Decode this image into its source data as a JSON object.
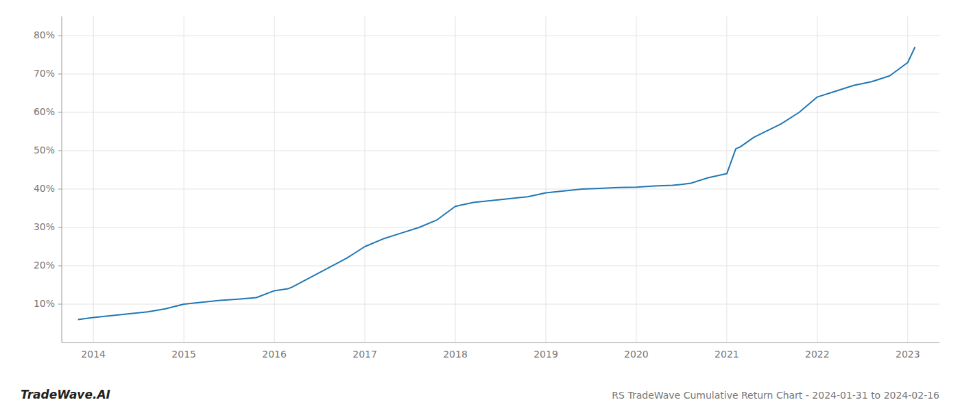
{
  "chart_data": {
    "type": "line",
    "title": "RS TradeWave Cumulative Return Chart - 2024-01-31 to 2024-02-16",
    "annotations": [
      "TradeWave.AI"
    ],
    "color": "#1f77b4",
    "grid": true,
    "x": [
      2013.83,
      2014.0,
      2014.2,
      2014.4,
      2014.6,
      2014.8,
      2015.0,
      2015.2,
      2015.4,
      2015.6,
      2015.8,
      2016.0,
      2016.15,
      2016.2,
      2016.4,
      2016.6,
      2016.8,
      2017.0,
      2017.2,
      2017.4,
      2017.6,
      2017.8,
      2018.0,
      2018.2,
      2018.4,
      2018.6,
      2018.8,
      2019.0,
      2019.2,
      2019.4,
      2019.6,
      2019.8,
      2020.0,
      2020.2,
      2020.4,
      2020.5,
      2020.6,
      2020.8,
      2021.0,
      2021.1,
      2021.15,
      2021.3,
      2021.6,
      2021.8,
      2022.0,
      2022.2,
      2022.4,
      2022.6,
      2022.8,
      2023.0,
      2023.08
    ],
    "values": [
      6.0,
      6.5,
      7.0,
      7.5,
      8.0,
      8.8,
      10.0,
      10.5,
      11.0,
      11.3,
      11.7,
      13.5,
      14.0,
      14.5,
      17.0,
      19.5,
      22.0,
      25.0,
      27.0,
      28.5,
      30.0,
      32.0,
      35.5,
      36.5,
      37.0,
      37.5,
      38.0,
      39.0,
      39.5,
      40.0,
      40.2,
      40.4,
      40.5,
      40.8,
      41.0,
      41.2,
      41.5,
      43.0,
      44.0,
      50.5,
      51.0,
      53.5,
      57.0,
      60.0,
      64.0,
      65.5,
      67.0,
      68.0,
      69.5,
      73.0,
      77.0
    ],
    "xlim": [
      2013.65,
      2023.35
    ],
    "ylim": [
      0,
      85
    ],
    "xticks": [
      2014,
      2015,
      2016,
      2017,
      2018,
      2019,
      2020,
      2021,
      2022,
      2023
    ],
    "yticks": [
      {
        "value": 10,
        "label": "10%"
      },
      {
        "value": 20,
        "label": "20%"
      },
      {
        "value": 30,
        "label": "30%"
      },
      {
        "value": 40,
        "label": "40%"
      },
      {
        "value": 50,
        "label": "50%"
      },
      {
        "value": 60,
        "label": "60%"
      },
      {
        "value": 70,
        "label": "70%"
      },
      {
        "value": 80,
        "label": "80%"
      }
    ]
  }
}
